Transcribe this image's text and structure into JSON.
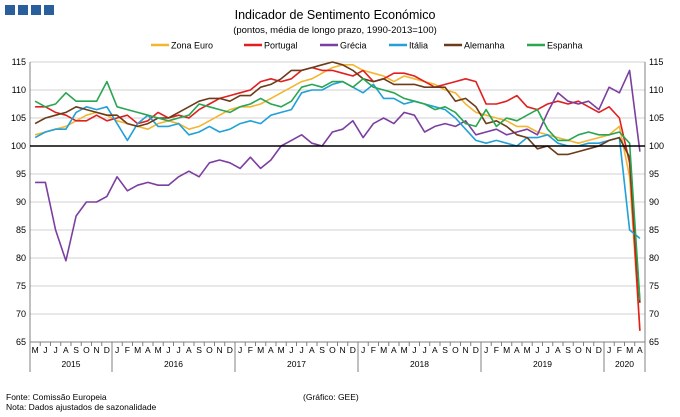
{
  "chart_data": {
    "type": "line",
    "title": "Indicador de Sentimento Económico",
    "subtitle": "(pontos, média de longo prazo, 1990-2013=100)",
    "xlabel": "",
    "ylabel": "",
    "ylim": [
      65,
      115
    ],
    "yticks": [
      65,
      70,
      75,
      80,
      85,
      90,
      95,
      100,
      105,
      110,
      115
    ],
    "reference_line": 100,
    "month_labels": [
      "M",
      "J",
      "J",
      "A",
      "S",
      "O",
      "N",
      "D",
      "J",
      "F",
      "M",
      "A",
      "M",
      "J",
      "J",
      "A",
      "S",
      "O",
      "N",
      "D",
      "J",
      "F",
      "M",
      "A",
      "M",
      "J",
      "J",
      "A",
      "S",
      "O",
      "N",
      "D",
      "J",
      "F",
      "M",
      "A",
      "M",
      "J",
      "J",
      "A",
      "S",
      "O",
      "N",
      "D",
      "J",
      "F",
      "M",
      "A",
      "M",
      "J",
      "J",
      "A",
      "S",
      "O",
      "N",
      "D",
      "J",
      "F",
      "M",
      "A"
    ],
    "year_labels": [
      {
        "label": "2015",
        "start": 0,
        "end": 7
      },
      {
        "label": "2016",
        "start": 8,
        "end": 19
      },
      {
        "label": "2017",
        "start": 20,
        "end": 31
      },
      {
        "label": "2018",
        "start": 32,
        "end": 43
      },
      {
        "label": "2019",
        "start": 44,
        "end": 55
      },
      {
        "label": "2020",
        "start": 56,
        "end": 59
      }
    ],
    "series": [
      {
        "name": "Zona Euro",
        "color": "#f2b630",
        "values": [
          102.0,
          102.5,
          103.0,
          103.5,
          104.5,
          105.5,
          106.0,
          105.5,
          104.5,
          104.0,
          103.5,
          103.0,
          104.0,
          104.5,
          104.0,
          103.0,
          103.5,
          104.5,
          105.5,
          106.5,
          107.0,
          107.0,
          107.5,
          108.5,
          109.5,
          110.5,
          111.5,
          112.0,
          113.0,
          114.0,
          114.5,
          114.5,
          113.5,
          113.0,
          112.5,
          111.5,
          112.5,
          112.0,
          111.5,
          111.0,
          110.0,
          109.5,
          107.5,
          106.0,
          105.5,
          105.0,
          104.5,
          103.5,
          103.5,
          102.5,
          102.0,
          101.5,
          101.0,
          100.5,
          101.0,
          101.5,
          102.0,
          103.5,
          94.5,
          67.0
        ]
      },
      {
        "name": "Portugal",
        "color": "#e02020",
        "values": [
          107.0,
          107.0,
          106.0,
          105.5,
          104.5,
          104.5,
          105.5,
          104.5,
          105.0,
          105.5,
          104.0,
          104.5,
          106.0,
          105.0,
          105.5,
          105.0,
          106.5,
          107.5,
          108.5,
          109.0,
          109.5,
          110.0,
          111.5,
          112.0,
          111.5,
          112.0,
          113.5,
          114.0,
          113.5,
          113.5,
          113.0,
          112.5,
          113.5,
          111.5,
          112.0,
          113.0,
          113.0,
          112.5,
          111.5,
          110.5,
          111.0,
          111.5,
          112.0,
          111.5,
          107.5,
          107.5,
          108.0,
          109.0,
          107.0,
          106.5,
          107.5,
          108.0,
          107.5,
          108.0,
          107.0,
          106.0,
          107.0,
          105.0,
          97.0,
          67.0
        ]
      },
      {
        "name": "Grécia",
        "color": "#7b3fa0",
        "values": [
          93.5,
          93.5,
          85.0,
          79.5,
          87.5,
          90.0,
          90.0,
          91.0,
          94.5,
          92.0,
          93.0,
          93.5,
          93.0,
          93.0,
          94.5,
          95.5,
          94.5,
          97.0,
          97.5,
          97.0,
          96.0,
          98.0,
          96.0,
          97.5,
          100.0,
          101.0,
          102.0,
          100.5,
          100.0,
          102.5,
          103.0,
          104.5,
          101.5,
          104.0,
          105.0,
          104.0,
          106.0,
          105.5,
          102.5,
          103.5,
          104.0,
          103.5,
          104.5,
          102.0,
          102.5,
          103.0,
          102.0,
          102.5,
          103.0,
          102.0,
          106.0,
          109.5,
          108.0,
          107.5,
          108.0,
          106.5,
          110.5,
          109.5,
          113.5,
          99.0
        ]
      },
      {
        "name": "Itália",
        "color": "#22a0d8",
        "values": [
          101.5,
          102.5,
          103.0,
          103.0,
          106.0,
          107.0,
          106.5,
          107.0,
          104.0,
          101.0,
          104.0,
          105.5,
          103.5,
          103.5,
          104.0,
          102.0,
          102.5,
          103.5,
          102.5,
          103.0,
          104.0,
          104.5,
          104.0,
          105.5,
          106.0,
          106.5,
          109.5,
          110.0,
          110.0,
          111.0,
          111.5,
          110.5,
          109.5,
          111.0,
          108.5,
          108.5,
          107.5,
          108.0,
          107.5,
          107.0,
          106.5,
          105.0,
          103.0,
          101.0,
          100.5,
          101.0,
          100.5,
          100.0,
          101.5,
          101.5,
          102.0,
          100.5,
          100.0,
          100.0,
          100.5,
          100.5,
          101.0,
          101.5,
          85.0,
          83.5
        ]
      },
      {
        "name": "Alemanha",
        "color": "#6b3b1a",
        "values": [
          104.0,
          105.0,
          105.5,
          106.0,
          107.0,
          106.5,
          106.0,
          105.5,
          105.5,
          104.0,
          103.5,
          104.0,
          105.0,
          105.0,
          106.0,
          107.0,
          108.0,
          108.5,
          108.5,
          108.0,
          109.0,
          109.0,
          110.5,
          111.0,
          112.0,
          113.5,
          113.5,
          114.0,
          114.5,
          115.0,
          114.5,
          113.5,
          112.0,
          111.5,
          112.0,
          111.0,
          111.0,
          111.0,
          110.5,
          110.5,
          110.5,
          108.0,
          108.5,
          107.0,
          104.0,
          104.5,
          103.5,
          102.0,
          101.5,
          99.5,
          100.0,
          98.5,
          98.5,
          99.0,
          99.5,
          100.0,
          101.0,
          101.5,
          98.0,
          72.0
        ]
      },
      {
        "name": "Espanha",
        "color": "#2aa552",
        "values": [
          108.0,
          107.0,
          107.5,
          109.5,
          108.0,
          108.0,
          108.0,
          111.5,
          107.0,
          106.5,
          106.0,
          105.5,
          105.0,
          104.5,
          105.0,
          105.5,
          107.5,
          107.0,
          106.5,
          106.0,
          107.0,
          107.5,
          108.5,
          107.5,
          107.0,
          108.0,
          110.5,
          111.0,
          110.5,
          111.5,
          111.5,
          110.5,
          112.0,
          110.5,
          110.0,
          109.5,
          108.5,
          108.0,
          107.5,
          106.5,
          107.0,
          106.0,
          104.0,
          103.5,
          106.5,
          103.5,
          105.0,
          104.5,
          105.5,
          106.5,
          103.0,
          101.0,
          101.0,
          102.0,
          102.5,
          102.0,
          102.0,
          102.5,
          100.5,
          72.5
        ]
      }
    ]
  },
  "source": "Fonte: Comissão Europeia",
  "note": "Nota: Dados ajustados de sazonalidade",
  "credit": "(Gráfico: GEE)"
}
